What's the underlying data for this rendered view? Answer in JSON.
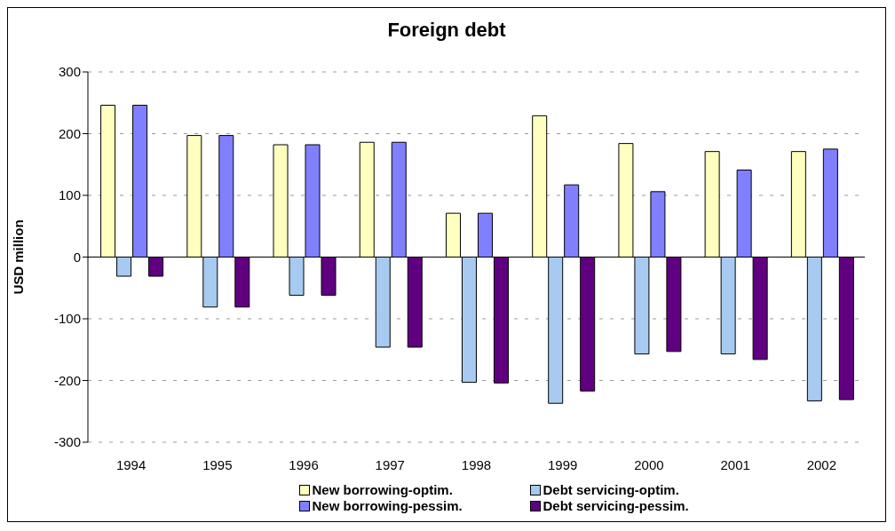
{
  "chart_data": {
    "type": "bar",
    "title": "Foreign debt",
    "ylabel": "USD million",
    "categories": [
      "1994",
      "1995",
      "1996",
      "1997",
      "1998",
      "1999",
      "2000",
      "2001",
      "2002"
    ],
    "series": [
      {
        "name": "New borrowing-optim.",
        "color": "#ffffc0",
        "values": [
          246,
          197,
          182,
          186,
          71,
          229,
          184,
          171,
          171
        ]
      },
      {
        "name": "Debt servicing-optim.",
        "color": "#a6caf0",
        "values": [
          -31,
          -81,
          -62,
          -146,
          -203,
          -237,
          -157,
          -157,
          -233
        ]
      },
      {
        "name": "New borrowing-pessim.",
        "color": "#8080ff",
        "values": [
          246,
          197,
          182,
          186,
          71,
          117,
          106,
          141,
          175
        ]
      },
      {
        "name": "Debt servicing-pessim.",
        "color": "#600080",
        "values": [
          -31,
          -81,
          -62,
          -146,
          -204,
          -217,
          -153,
          -166,
          -231
        ]
      }
    ],
    "ylim": [
      -300,
      300
    ],
    "yticks": [
      -300,
      -200,
      -100,
      0,
      100,
      200,
      300
    ],
    "grid": "y",
    "legend": "bottom"
  }
}
